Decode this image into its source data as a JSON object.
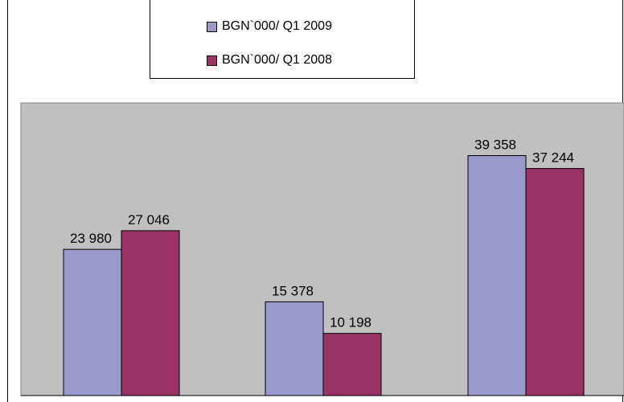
{
  "chart_data": {
    "type": "bar",
    "categories": [
      "",
      "",
      ""
    ],
    "series": [
      {
        "name": "BGN`000/ Q1 2009",
        "values": [
          23980,
          15378,
          39358
        ],
        "labels": [
          "23 980",
          "15 378",
          "39 358"
        ],
        "color": "#9999cc"
      },
      {
        "name": "BGN`000/ Q1 2008",
        "values": [
          27046,
          10198,
          37244
        ],
        "labels": [
          "27 046",
          "10 198",
          "37 244"
        ],
        "color": "#993366"
      }
    ],
    "title": "",
    "xlabel": "",
    "ylabel": "",
    "ylim": [
      0,
      48000
    ],
    "grid": false,
    "legend": "top",
    "plot_background": "#c0c0c0"
  }
}
